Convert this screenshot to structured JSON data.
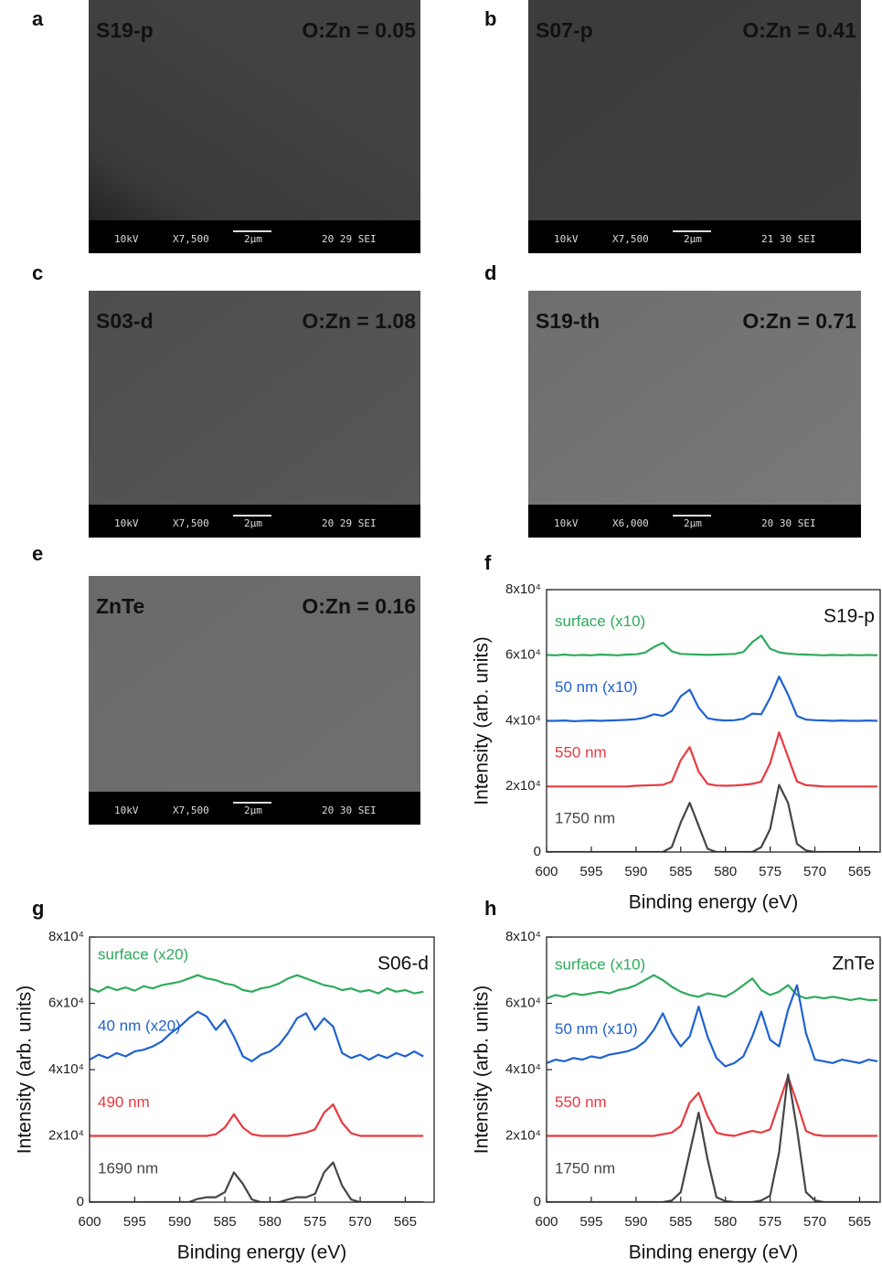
{
  "sem_panels": [
    {
      "letter": "a",
      "sample": "S19-p",
      "ratio": "O:Zn = 0.05",
      "info": [
        "10kV",
        "X7,500",
        "2μm",
        "20 29 SEI"
      ]
    },
    {
      "letter": "b",
      "sample": "S07-p",
      "ratio": "O:Zn = 0.41",
      "info": [
        "10kV",
        "X7,500",
        "2μm",
        "21 30 SEI"
      ]
    },
    {
      "letter": "c",
      "sample": "S03-d",
      "ratio": "O:Zn = 1.08",
      "info": [
        "10kV",
        "X7,500",
        "2μm",
        "20 29 SEI"
      ]
    },
    {
      "letter": "d",
      "sample": "S19-th",
      "ratio": "O:Zn = 0.71",
      "info": [
        "10kV",
        "X6,000",
        "2μm",
        "20 30 SEI"
      ]
    },
    {
      "letter": "e",
      "sample": "ZnTe",
      "ratio": "O:Zn = 0.16",
      "info": [
        "10kV",
        "X7,500",
        "2μm",
        "20 30 SEI"
      ]
    }
  ],
  "chart_data": [
    {
      "type": "line",
      "panel": "f",
      "title": "S19-p",
      "x_label": "Binding energy (eV)",
      "y_label": "Intensity (arb. units)",
      "xlim": [
        600,
        562.7
      ],
      "xticks": [
        600,
        595,
        590,
        585,
        580,
        575,
        570,
        565
      ],
      "ylim": [
        0,
        80000
      ],
      "yticks": [
        0,
        {
          "value": 20000,
          "label": "2x10⁴"
        },
        {
          "value": 40000,
          "label": "4x10⁴"
        },
        {
          "value": 60000,
          "label": "6x10⁴"
        },
        {
          "value": 80000,
          "label": "8x10⁴"
        }
      ],
      "x": [
        600,
        599,
        598,
        597,
        596,
        595,
        594,
        593,
        592,
        591,
        590,
        589,
        588,
        587,
        586,
        585,
        584,
        583,
        582,
        581,
        580,
        579,
        578,
        577,
        576,
        575,
        574,
        573,
        572,
        571,
        570,
        569,
        568,
        567,
        566,
        565,
        564,
        563
      ],
      "series": [
        {
          "name": "surface (x10)",
          "color": "#2eaa5c",
          "values": [
            60100,
            60000,
            60200,
            60000,
            60100,
            60000,
            60200,
            60100,
            60000,
            60200,
            60300,
            60800,
            62500,
            63800,
            61200,
            60400,
            60300,
            60200,
            60100,
            60200,
            60300,
            60400,
            61000,
            64000,
            66000,
            62000,
            60900,
            60500,
            60300,
            60200,
            60100,
            60000,
            60100,
            60000,
            60100,
            60000,
            60100,
            60000
          ]
        },
        {
          "name": "50 nm (x10)",
          "color": "#1f62d0",
          "values": [
            40000,
            40000,
            40100,
            39900,
            40000,
            40100,
            40000,
            40100,
            40200,
            40300,
            40500,
            41000,
            42000,
            41500,
            43000,
            47500,
            49500,
            44000,
            40800,
            40300,
            40100,
            40200,
            40600,
            42200,
            42000,
            47000,
            53500,
            48000,
            41500,
            40400,
            40200,
            40100,
            40000,
            40100,
            40000,
            40000,
            40100,
            40000
          ]
        },
        {
          "name": "550 nm",
          "color": "#e8393f",
          "values": [
            20000,
            20000,
            20000,
            20000,
            20000,
            20000,
            20000,
            20000,
            20000,
            20000,
            20200,
            20300,
            20400,
            20500,
            21500,
            28000,
            32000,
            24500,
            20800,
            20300,
            20200,
            20300,
            20500,
            20800,
            21500,
            27000,
            36500,
            29000,
            21500,
            20400,
            20200,
            20000,
            20000,
            20000,
            20000,
            20000,
            20000,
            20000
          ]
        },
        {
          "name": "1750 nm",
          "color": "#454545",
          "values": [
            0,
            0,
            0,
            0,
            0,
            0,
            0,
            0,
            0,
            0,
            0,
            0,
            0,
            0,
            1500,
            9000,
            15000,
            8000,
            1000,
            0,
            0,
            0,
            0,
            0,
            1500,
            7000,
            20500,
            15000,
            2500,
            500,
            0,
            0,
            0,
            0,
            0,
            0,
            0,
            0
          ]
        }
      ]
    },
    {
      "type": "line",
      "panel": "g",
      "title": "S06-d",
      "x_label": "Binding energy (eV)",
      "y_label": "Intensity (arb. units)",
      "xlim": [
        600,
        561.8
      ],
      "xticks": [
        600,
        595,
        590,
        585,
        580,
        575,
        570,
        565
      ],
      "ylim": [
        0,
        80000
      ],
      "yticks": [
        0,
        {
          "value": 20000,
          "label": "2x10⁴"
        },
        {
          "value": 40000,
          "label": "4x10⁴"
        },
        {
          "value": 60000,
          "label": "6x10⁴"
        },
        {
          "value": 80000,
          "label": "8x10⁴"
        }
      ],
      "x": [
        600,
        599,
        598,
        597,
        596,
        595,
        594,
        593,
        592,
        591,
        590,
        589,
        588,
        587,
        586,
        585,
        584,
        583,
        582,
        581,
        580,
        579,
        578,
        577,
        576,
        575,
        574,
        573,
        572,
        571,
        570,
        569,
        568,
        567,
        566,
        565,
        564,
        563
      ],
      "series": [
        {
          "name": "surface (x20)",
          "color": "#2eaa5c",
          "values": [
            64500,
            63500,
            65000,
            64000,
            64800,
            63800,
            65200,
            64500,
            65500,
            66000,
            66500,
            67500,
            68500,
            67500,
            67000,
            66000,
            65500,
            64000,
            63500,
            64500,
            65000,
            66000,
            67500,
            68500,
            67500,
            66500,
            65500,
            65000,
            64000,
            64500,
            63500,
            64000,
            63000,
            64500,
            63500,
            64000,
            63000,
            63500
          ]
        },
        {
          "name": "40 nm (x20)",
          "color": "#1f62d0",
          "values": [
            43000,
            44500,
            43500,
            45000,
            44000,
            45500,
            46000,
            47000,
            48500,
            51000,
            53000,
            55500,
            57500,
            56000,
            52000,
            55000,
            50000,
            44000,
            42500,
            44500,
            45500,
            47500,
            51000,
            55500,
            57000,
            52000,
            55500,
            53000,
            45000,
            43500,
            44500,
            43000,
            44500,
            43500,
            45000,
            44000,
            45500,
            44000
          ]
        },
        {
          "name": "490 nm",
          "color": "#e8393f",
          "values": [
            20000,
            20000,
            20000,
            20000,
            20000,
            20000,
            20000,
            20000,
            20000,
            20000,
            20000,
            20000,
            20000,
            20000,
            20500,
            22500,
            26500,
            22500,
            20500,
            20000,
            20000,
            20000,
            20000,
            20500,
            21000,
            22000,
            27000,
            29500,
            24000,
            20800,
            20000,
            20000,
            20000,
            20000,
            20000,
            20000,
            20000,
            20000
          ]
        },
        {
          "name": "1690 nm",
          "color": "#454545",
          "values": [
            0,
            0,
            0,
            0,
            0,
            0,
            0,
            0,
            0,
            0,
            0,
            0,
            1000,
            1500,
            1500,
            3000,
            9000,
            5500,
            800,
            0,
            0,
            0,
            800,
            1500,
            1500,
            2500,
            9000,
            12000,
            5000,
            800,
            0,
            0,
            0,
            0,
            0,
            0,
            0,
            0
          ]
        }
      ]
    },
    {
      "type": "line",
      "panel": "h",
      "title": "ZnTe",
      "x_label": "Binding energy (eV)",
      "y_label": "Intensity (arb. units)",
      "xlim": [
        600,
        562.7
      ],
      "xticks": [
        600,
        595,
        590,
        585,
        580,
        575,
        570,
        565
      ],
      "ylim": [
        0,
        80000
      ],
      "yticks": [
        0,
        {
          "value": 20000,
          "label": "2x10⁴"
        },
        {
          "value": 40000,
          "label": "4x10⁴"
        },
        {
          "value": 60000,
          "label": "6x10⁴"
        },
        {
          "value": 80000,
          "label": "8x10⁴"
        }
      ],
      "x": [
        600,
        599,
        598,
        597,
        596,
        595,
        594,
        593,
        592,
        591,
        590,
        589,
        588,
        587,
        586,
        585,
        584,
        583,
        582,
        581,
        580,
        579,
        578,
        577,
        576,
        575,
        574,
        573,
        572,
        571,
        570,
        569,
        568,
        567,
        566,
        565,
        564,
        563
      ],
      "series": [
        {
          "name": "surface (x10)",
          "color": "#2eaa5c",
          "values": [
            61500,
            62500,
            62000,
            63000,
            62500,
            63000,
            63500,
            63000,
            64000,
            64500,
            65500,
            67000,
            68500,
            67000,
            65000,
            63500,
            62500,
            62000,
            63000,
            62500,
            62000,
            63500,
            65500,
            67500,
            64000,
            62500,
            63500,
            65500,
            62500,
            61500,
            62000,
            61500,
            62000,
            61500,
            61000,
            61500,
            61000,
            61000
          ]
        },
        {
          "name": "50 nm (x10)",
          "color": "#1f62d0",
          "values": [
            42000,
            43000,
            42500,
            43500,
            43000,
            44000,
            43500,
            44500,
            45000,
            45500,
            46500,
            48500,
            52000,
            57000,
            51000,
            47000,
            50000,
            59000,
            50000,
            43500,
            41000,
            42000,
            44000,
            50000,
            57500,
            49000,
            47000,
            58000,
            65500,
            51000,
            43000,
            42500,
            42000,
            43000,
            42500,
            42000,
            43000,
            42500
          ]
        },
        {
          "name": "550 nm",
          "color": "#e8393f",
          "values": [
            20000,
            20000,
            20000,
            20000,
            20000,
            20000,
            20000,
            20000,
            20000,
            20000,
            20000,
            20000,
            20000,
            20500,
            21000,
            23000,
            30000,
            33000,
            26000,
            21000,
            20300,
            20000,
            20800,
            21500,
            21000,
            22000,
            30000,
            38000,
            30000,
            21500,
            20300,
            20000,
            20000,
            20000,
            20000,
            20000,
            20000,
            20000
          ]
        },
        {
          "name": "1750 nm",
          "color": "#454545",
          "values": [
            0,
            0,
            0,
            0,
            0,
            0,
            0,
            0,
            0,
            0,
            0,
            0,
            0,
            0,
            500,
            3000,
            15000,
            27000,
            13000,
            1500,
            300,
            0,
            0,
            0,
            500,
            2000,
            15000,
            38500,
            22000,
            3000,
            500,
            0,
            0,
            0,
            0,
            0,
            0,
            0
          ]
        }
      ]
    }
  ]
}
